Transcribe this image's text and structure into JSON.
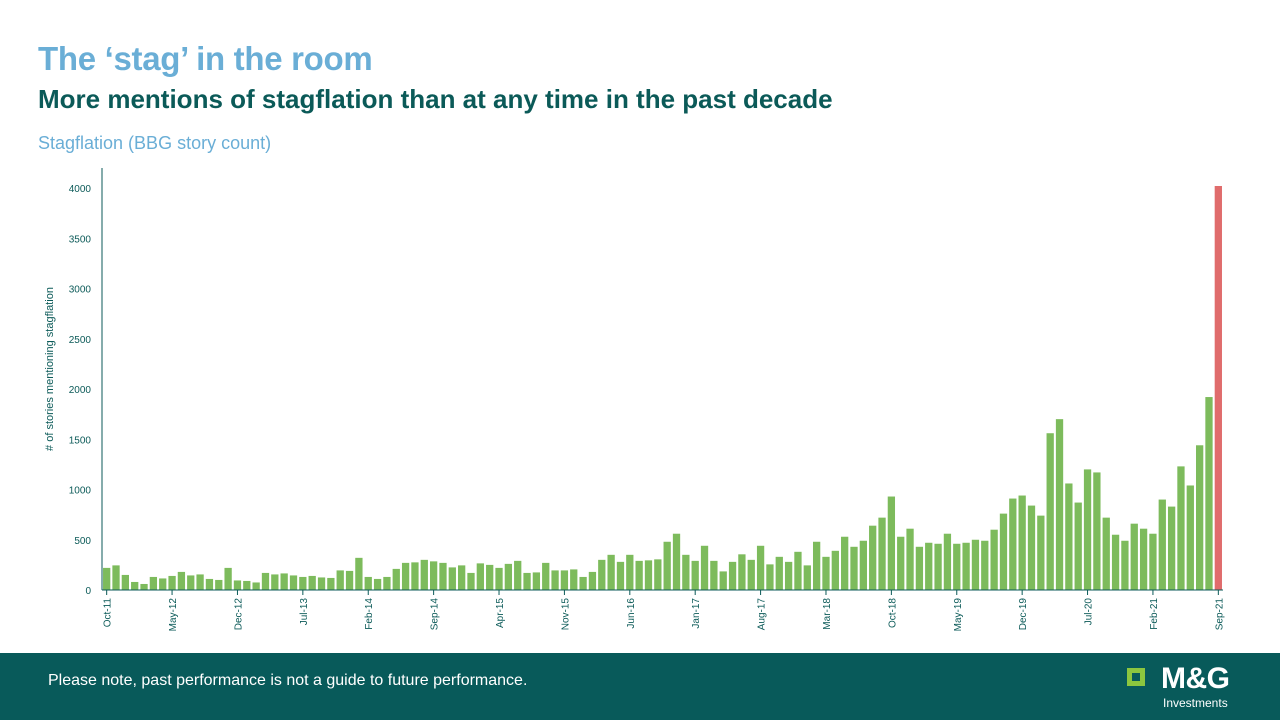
{
  "header": {
    "title": "The ‘stag’ in the room",
    "subtitle": "More mentions of stagflation than at any time in the past decade",
    "chart_caption": "Stagflation (BBG story count)"
  },
  "footer": {
    "disclaimer": "Please note, past performance is not a guide to future performance.",
    "logo_text": "M&G",
    "logo_sub": "Investments"
  },
  "colors": {
    "bar": "#7dbb5c",
    "highlight": "#e06c6c",
    "axis": "#0b5a58",
    "footer_bg": "#085a5a",
    "title": "#6aaed6"
  },
  "chart_data": {
    "type": "bar",
    "title": "Stagflation (BBG story count)",
    "xlabel": "",
    "ylabel": "# of stories mentioning stagflation",
    "ylim": [
      0,
      4000
    ],
    "yticks": [
      0,
      500,
      1000,
      1500,
      2000,
      2500,
      3000,
      3500,
      4000
    ],
    "grid": false,
    "x_tick_labels": [
      "Oct-11",
      "May-12",
      "Dec-12",
      "Jul-13",
      "Feb-14",
      "Sep-14",
      "Apr-15",
      "Nov-15",
      "Jun-16",
      "Jan-17",
      "Aug-17",
      "Mar-18",
      "Oct-18",
      "May-19",
      "Dec-19",
      "Jul-20",
      "Feb-21",
      "Sep-21"
    ],
    "categories": [
      "Oct-11",
      "Nov-11",
      "Dec-11",
      "Jan-12",
      "Feb-12",
      "Mar-12",
      "Apr-12",
      "May-12",
      "Jun-12",
      "Jul-12",
      "Aug-12",
      "Sep-12",
      "Oct-12",
      "Nov-12",
      "Dec-12",
      "Jan-13",
      "Feb-13",
      "Mar-13",
      "Apr-13",
      "May-13",
      "Jun-13",
      "Jul-13",
      "Aug-13",
      "Sep-13",
      "Oct-13",
      "Nov-13",
      "Dec-13",
      "Jan-14",
      "Feb-14",
      "Mar-14",
      "Apr-14",
      "May-14",
      "Jun-14",
      "Jul-14",
      "Aug-14",
      "Sep-14",
      "Oct-14",
      "Nov-14",
      "Dec-14",
      "Jan-15",
      "Feb-15",
      "Mar-15",
      "Apr-15",
      "May-15",
      "Jun-15",
      "Jul-15",
      "Aug-15",
      "Sep-15",
      "Oct-15",
      "Nov-15",
      "Dec-15",
      "Jan-16",
      "Feb-16",
      "Mar-16",
      "Apr-16",
      "May-16",
      "Jun-16",
      "Jul-16",
      "Aug-16",
      "Sep-16",
      "Oct-16",
      "Nov-16",
      "Dec-16",
      "Jan-17",
      "Feb-17",
      "Mar-17",
      "Apr-17",
      "May-17",
      "Jun-17",
      "Jul-17",
      "Aug-17",
      "Sep-17",
      "Oct-17",
      "Nov-17",
      "Dec-17",
      "Jan-18",
      "Feb-18",
      "Mar-18",
      "Apr-18",
      "May-18",
      "Jun-18",
      "Jul-18",
      "Aug-18",
      "Sep-18",
      "Oct-18",
      "Nov-18",
      "Dec-18",
      "Jan-19",
      "Feb-19",
      "Mar-19",
      "Apr-19",
      "May-19",
      "Jun-19",
      "Jul-19",
      "Aug-19",
      "Sep-19",
      "Oct-19",
      "Nov-19",
      "Dec-19",
      "Jan-20",
      "Feb-20",
      "Mar-20",
      "Apr-20",
      "May-20",
      "Jun-20",
      "Jul-20",
      "Aug-20",
      "Sep-20",
      "Oct-20",
      "Nov-20",
      "Dec-20",
      "Jan-21",
      "Feb-21",
      "Mar-21",
      "Apr-21",
      "May-21",
      "Jun-21",
      "Jul-21",
      "Aug-21",
      "Sep-21"
    ],
    "values": [
      220,
      245,
      150,
      80,
      60,
      130,
      115,
      140,
      180,
      145,
      155,
      110,
      100,
      220,
      95,
      90,
      75,
      170,
      155,
      165,
      145,
      130,
      140,
      125,
      120,
      195,
      190,
      320,
      130,
      110,
      130,
      210,
      270,
      275,
      300,
      285,
      270,
      225,
      245,
      170,
      265,
      250,
      220,
      260,
      290,
      170,
      175,
      270,
      195,
      195,
      205,
      130,
      180,
      300,
      350,
      280,
      350,
      290,
      295,
      305,
      480,
      560,
      350,
      290,
      440,
      290,
      185,
      280,
      355,
      300,
      440,
      255,
      330,
      280,
      380,
      245,
      480,
      330,
      390,
      530,
      430,
      490,
      640,
      720,
      930,
      530,
      610,
      430,
      470,
      460,
      560,
      460,
      470,
      500,
      490,
      600,
      760,
      910,
      940,
      840,
      740,
      1560,
      1700,
      1060,
      870,
      1200,
      1170,
      720,
      550,
      490,
      660,
      610,
      560,
      900,
      830,
      1230,
      1040,
      1440,
      1920,
      4020
    ],
    "highlight_last": true
  }
}
